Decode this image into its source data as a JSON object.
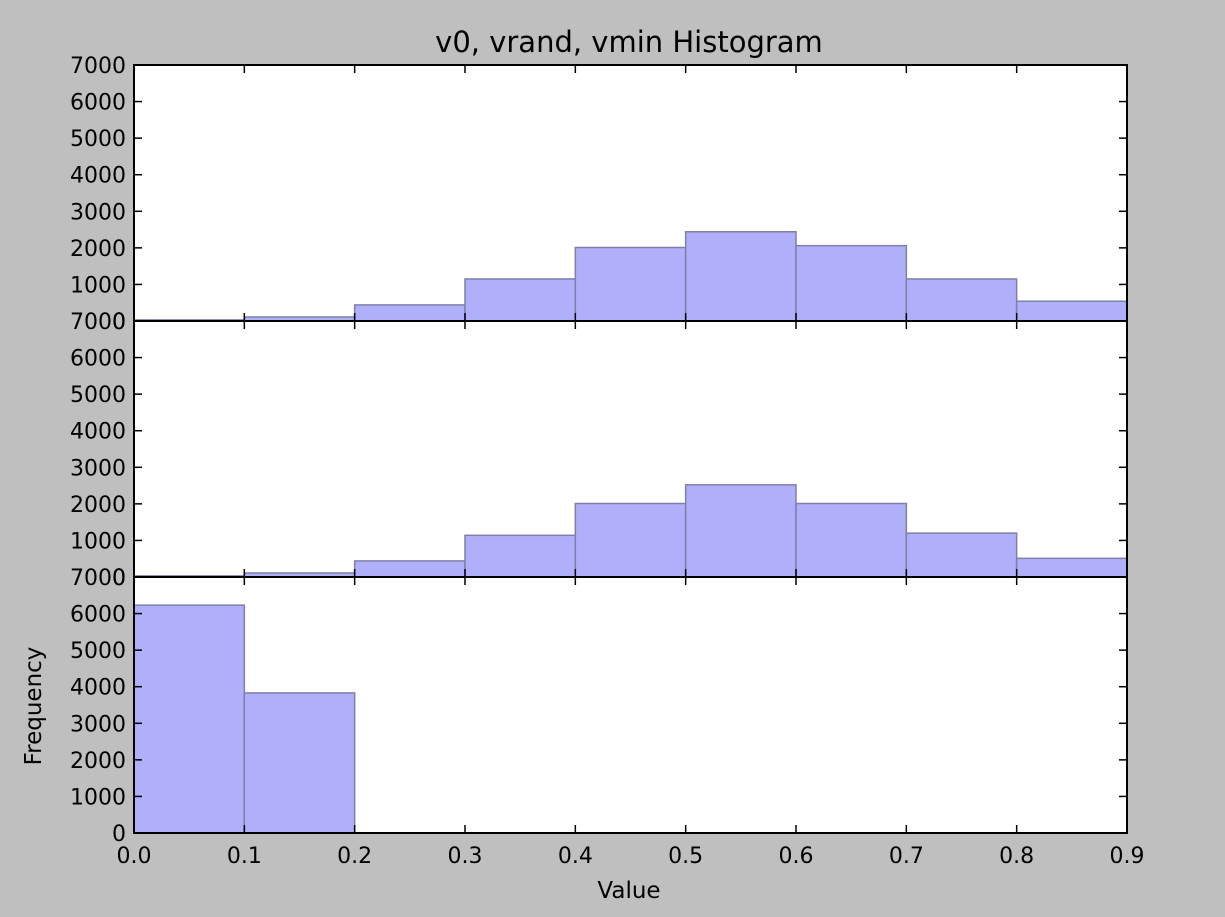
{
  "chart_data": {
    "type": "bar",
    "title": "v0, vrand, vmin Histogram",
    "xlabel": "Value",
    "ylabel": "Frequency",
    "xlim": [
      0.0,
      0.9
    ],
    "ylim": [
      0,
      7000
    ],
    "bin_edges": [
      0.0,
      0.1,
      0.2,
      0.3,
      0.4,
      0.5,
      0.6,
      0.7,
      0.8,
      0.9
    ],
    "xtick_labels": [
      "0.0",
      "0.1",
      "0.2",
      "0.3",
      "0.4",
      "0.5",
      "0.6",
      "0.7",
      "0.8",
      "0.9"
    ],
    "ytick_labels": [
      "0",
      "1000",
      "2000",
      "3000",
      "4000",
      "5000",
      "6000",
      "7000"
    ],
    "bar_color": "#b0b0fa",
    "bar_edge_color": "#7f7fa8",
    "grid": false,
    "panels": [
      {
        "values": [
          30,
          110,
          440,
          1150,
          2010,
          2440,
          2060,
          1150,
          540
        ]
      },
      {
        "values": [
          30,
          110,
          440,
          1140,
          2010,
          2520,
          2010,
          1200,
          510
        ]
      },
      {
        "values": [
          6230,
          3830,
          0,
          0,
          0,
          0,
          0,
          0,
          0
        ]
      }
    ]
  }
}
